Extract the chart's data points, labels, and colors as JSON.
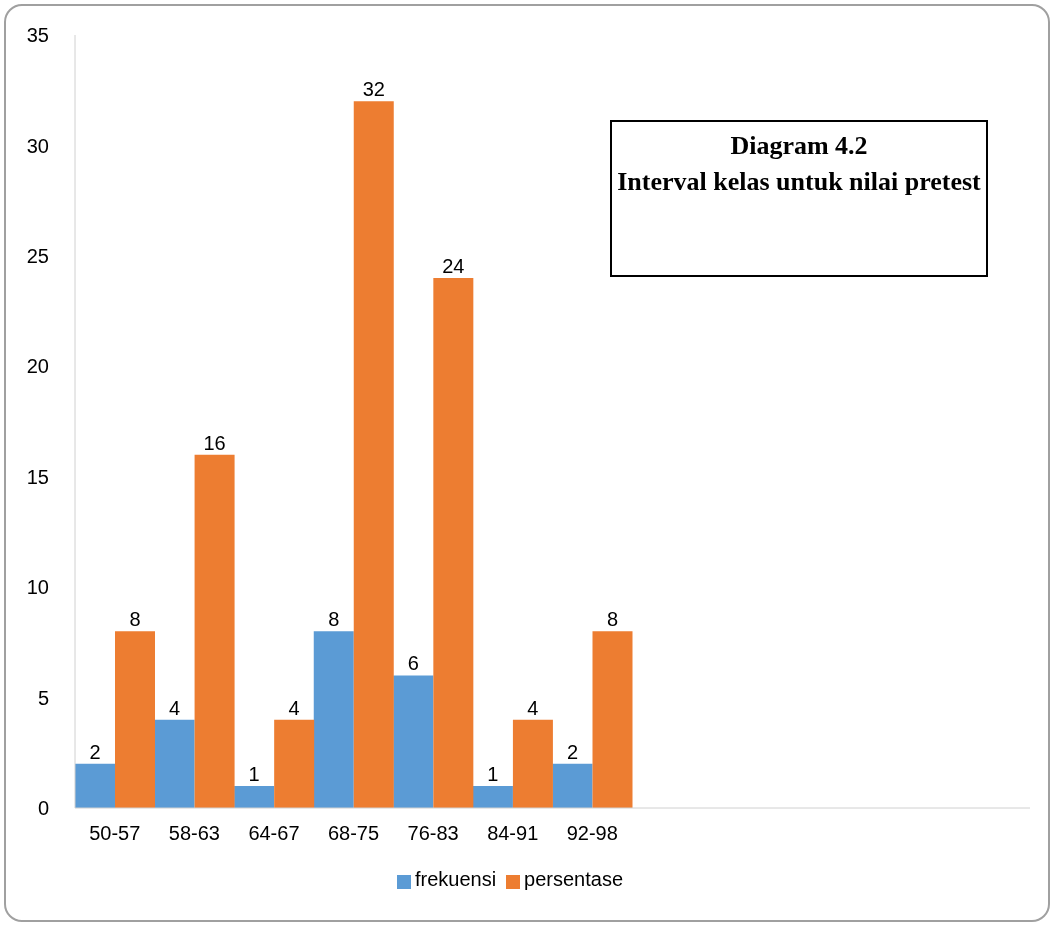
{
  "chart_data": {
    "type": "bar",
    "title": "Diagram 4.2",
    "subtitle": "Interval kelas untuk nilai pretest",
    "categories": [
      "50-57",
      "58-63",
      "64-67",
      "68-75",
      "76-83",
      "84-91",
      "92-98",
      null,
      null,
      null,
      null,
      null
    ],
    "series": [
      {
        "name": "frekuensi",
        "color": "#5b9bd5",
        "values": [
          2,
          4,
          1,
          8,
          6,
          1,
          2,
          null,
          null,
          null,
          null,
          null
        ]
      },
      {
        "name": "persentase",
        "color": "#ed7d31",
        "values": [
          8,
          16,
          4,
          32,
          24,
          4,
          8,
          null,
          null,
          null,
          null,
          null
        ]
      }
    ],
    "ylim": [
      0,
      35
    ],
    "yticks": [
      0,
      5,
      10,
      15,
      20,
      25,
      30,
      35
    ],
    "grid": false,
    "legend": "bottom",
    "data_labels": true
  }
}
